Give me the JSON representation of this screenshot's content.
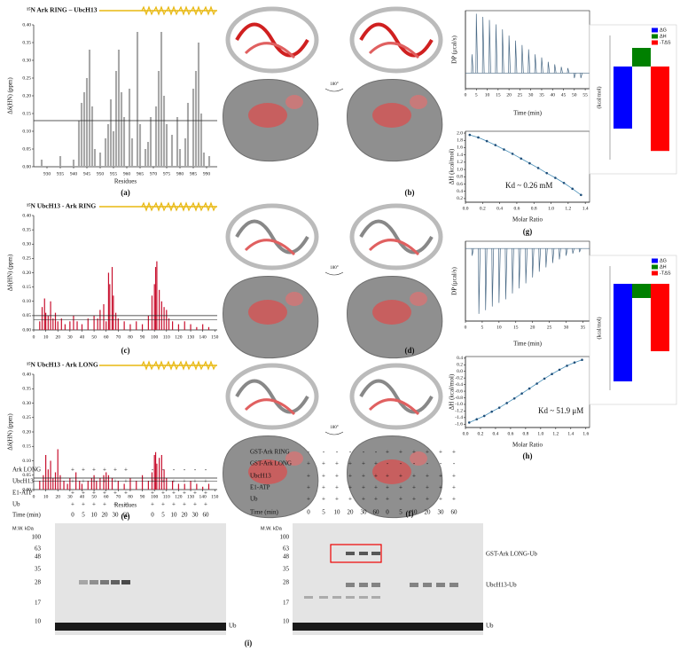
{
  "chart_data": [
    {
      "type": "bar",
      "title": "¹⁵N Ark RING – UbcH13",
      "panel": "(a)",
      "xlabel": "Residues",
      "ylabel": "Δδ(HN) (ppm)",
      "color": "#a8a8a8",
      "x": [
        928,
        935,
        940,
        942,
        943,
        944,
        945,
        946,
        947,
        948,
        950,
        952,
        953,
        954,
        955,
        956,
        957,
        958,
        959,
        961,
        962,
        964,
        965,
        967,
        968,
        969,
        971,
        972,
        973,
        974,
        975,
        977,
        979,
        980,
        982,
        983,
        985,
        986,
        987,
        988,
        989,
        991
      ],
      "values": [
        0.02,
        0.03,
        0.02,
        0.13,
        0.18,
        0.21,
        0.25,
        0.33,
        0.17,
        0.05,
        0.04,
        0.08,
        0.12,
        0.19,
        0.1,
        0.27,
        0.33,
        0.21,
        0.14,
        0.22,
        0.08,
        0.38,
        0.12,
        0.05,
        0.07,
        0.14,
        0.17,
        0.27,
        0.38,
        0.2,
        0.12,
        0.09,
        0.14,
        0.05,
        0.08,
        0.18,
        0.22,
        0.27,
        0.35,
        0.15,
        0.04,
        0.03
      ],
      "xlim": [
        925,
        994
      ],
      "xticks": [
        930,
        935,
        940,
        945,
        950,
        955,
        960,
        965,
        970,
        975,
        980,
        985,
        990
      ],
      "ylim": [
        0,
        0.4
      ],
      "yticks": [
        {
          "value": 0,
          "label": "0.00"
        },
        0.05,
        {
          "value": 0.1,
          "label": "0.10"
        },
        0.15,
        {
          "value": 0.2,
          "label": "0.20"
        },
        0.25,
        {
          "value": 0.3,
          "label": "0.30"
        },
        0.35,
        {
          "value": 0.4,
          "label": "0.40"
        }
      ],
      "thresholds": [
        0.13
      ]
    },
    {
      "type": "bar",
      "title": "¹⁵N UbcH13 - Ark RING",
      "panel": "(c)",
      "ylabel": "Δδ(HN) (ppm)",
      "color": "#c8102e",
      "x": [
        5,
        7,
        9,
        10,
        12,
        14,
        16,
        18,
        20,
        23,
        26,
        30,
        33,
        36,
        40,
        45,
        50,
        53,
        55,
        58,
        60,
        62,
        63,
        65,
        66,
        68,
        70,
        75,
        80,
        85,
        90,
        95,
        98,
        100,
        101,
        102,
        104,
        106,
        108,
        110,
        112,
        115,
        120,
        125,
        130,
        135,
        140,
        145
      ],
      "values": [
        0.03,
        0.08,
        0.11,
        0.06,
        0.05,
        0.1,
        0.04,
        0.06,
        0.03,
        0.04,
        0.02,
        0.03,
        0.05,
        0.03,
        0.02,
        0.04,
        0.05,
        0.04,
        0.07,
        0.09,
        0.03,
        0.2,
        0.16,
        0.22,
        0.12,
        0.06,
        0.04,
        0.03,
        0.02,
        0.03,
        0.02,
        0.05,
        0.12,
        0.16,
        0.22,
        0.24,
        0.14,
        0.1,
        0.08,
        0.07,
        0.04,
        0.03,
        0.02,
        0.03,
        0.02,
        0.01,
        0.02,
        0.01
      ],
      "xlim": [
        0,
        152
      ],
      "xticks": [
        0,
        10,
        20,
        30,
        40,
        50,
        60,
        70,
        80,
        90,
        100,
        110,
        120,
        130,
        140,
        150
      ],
      "ylim": [
        0,
        0.4
      ],
      "yticks": [
        {
          "value": 0,
          "label": "0.00"
        },
        0.05,
        {
          "value": 0.1,
          "label": "0.10"
        },
        0.15,
        {
          "value": 0.2,
          "label": "0.20"
        },
        0.25,
        {
          "value": 0.3,
          "label": "0.30"
        },
        0.35,
        {
          "value": 0.4,
          "label": "0.40"
        }
      ],
      "thresholds": [
        0.05,
        0.035
      ]
    },
    {
      "type": "bar",
      "title": "¹⁵N UbcH13 - Ark LONG",
      "panel": "(e)",
      "xlabel": "Residues",
      "ylabel": "Δδ(HN) (ppm)",
      "color": "#c8102e",
      "x": [
        5,
        8,
        10,
        12,
        14,
        16,
        18,
        20,
        22,
        25,
        28,
        30,
        35,
        38,
        40,
        45,
        48,
        50,
        52,
        55,
        58,
        60,
        62,
        65,
        70,
        75,
        80,
        85,
        90,
        95,
        98,
        100,
        101,
        102,
        104,
        106,
        108,
        110,
        115,
        120,
        125,
        130,
        135,
        140,
        145
      ],
      "values": [
        0.03,
        0.05,
        0.12,
        0.07,
        0.1,
        0.04,
        0.06,
        0.14,
        0.05,
        0.03,
        0.02,
        0.04,
        0.06,
        0.03,
        0.02,
        0.03,
        0.04,
        0.05,
        0.03,
        0.04,
        0.05,
        0.06,
        0.05,
        0.04,
        0.03,
        0.02,
        0.04,
        0.03,
        0.05,
        0.03,
        0.06,
        0.12,
        0.13,
        0.09,
        0.11,
        0.12,
        0.07,
        0.04,
        0.03,
        0.02,
        0.02,
        0.03,
        0.02,
        0.01,
        0.02
      ],
      "xlim": [
        0,
        152
      ],
      "xticks": [
        0,
        10,
        20,
        30,
        40,
        50,
        60,
        70,
        80,
        90,
        100,
        110,
        120,
        130,
        140,
        150
      ],
      "ylim": [
        0,
        0.4
      ],
      "yticks": [
        {
          "value": 0,
          "label": "0.00"
        },
        0.05,
        {
          "value": 0.1,
          "label": "0.10"
        },
        0.15,
        {
          "value": 0.2,
          "label": "0.20"
        },
        0.25,
        {
          "value": 0.3,
          "label": "0.30"
        },
        0.35,
        {
          "value": 0.4,
          "label": "0.40"
        }
      ],
      "thresholds": [
        0.04,
        0.03
      ]
    },
    {
      "type": "thermogram",
      "xlabel": "Time (min)",
      "ylabel": "DP (μcal/s)",
      "color": "#4a6a86",
      "x": [
        3,
        5,
        8,
        11,
        14,
        17,
        20,
        23,
        26,
        29,
        32,
        35,
        38,
        41,
        44,
        47,
        50,
        53
      ],
      "values": [
        0.3,
        0.95,
        0.9,
        0.85,
        0.78,
        0.7,
        0.6,
        0.52,
        0.45,
        0.38,
        0.3,
        0.25,
        0.18,
        0.14,
        0.1,
        0.08,
        -0.08,
        -0.08
      ],
      "xlim": [
        0,
        57
      ],
      "xticks": [
        0,
        5,
        10,
        15,
        20,
        25,
        30,
        35,
        40,
        45,
        50,
        55
      ],
      "ylim": [
        -0.25,
        1
      ]
    },
    {
      "type": "enthalpy",
      "xlabel": "Molar Ratio",
      "ylabel": "ΔH (kcal/mol)",
      "panel": "(g)",
      "annotation": "Kd ~ 0.26 mM",
      "color": "#4a90b8",
      "x": [
        0.05,
        0.15,
        0.25,
        0.35,
        0.45,
        0.55,
        0.65,
        0.75,
        0.85,
        0.95,
        1.05,
        1.15,
        1.25,
        1.35
      ],
      "values": [
        1.95,
        1.88,
        1.78,
        1.67,
        1.55,
        1.43,
        1.3,
        1.17,
        1.04,
        0.9,
        0.77,
        0.63,
        0.47,
        0.3
      ],
      "xlim": [
        0,
        1.45
      ],
      "xticks": [
        {
          "value": 0,
          "label": "0.0"
        },
        0.2,
        0.4,
        0.6,
        0.8,
        {
          "value": 1,
          "label": "1.0"
        },
        1.2,
        1.4
      ],
      "ylim": [
        0.1,
        2.05
      ],
      "yticks": [
        0.2,
        0.4,
        0.6,
        0.8,
        {
          "value": 1,
          "label": "1.0"
        },
        1.2,
        1.4,
        1.6,
        1.8,
        {
          "value": 2,
          "label": "2.0"
        }
      ]
    },
    {
      "type": "energy",
      "ylabel": "(kcal/mol)",
      "categories": [
        "ΔG",
        "ΔH",
        "-TΔS"
      ],
      "colors": [
        "#0000ff",
        "#008000",
        "#ff0000"
      ],
      "values": [
        -5,
        1.5,
        -6.8
      ],
      "ylim": [
        -7.5,
        2.5
      ]
    },
    {
      "type": "thermogram",
      "xlabel": "Time (min)",
      "ylabel": "DP (μcal/s)",
      "color": "#4a6a86",
      "x": [
        2,
        4,
        6,
        8,
        10,
        12,
        14,
        16,
        18,
        20,
        22,
        24,
        26,
        28,
        30,
        32,
        34
      ],
      "values": [
        -0.1,
        -0.9,
        -0.85,
        -0.8,
        -0.75,
        -0.7,
        -0.62,
        -0.55,
        -0.48,
        -0.4,
        -0.32,
        -0.26,
        -0.2,
        -0.15,
        -0.1,
        -0.07,
        -0.05
      ],
      "xlim": [
        0,
        37
      ],
      "xticks": [
        0,
        5,
        10,
        15,
        20,
        25,
        30,
        35
      ],
      "ylim": [
        -1,
        0.1
      ]
    },
    {
      "type": "enthalpy",
      "xlabel": "Molar Ratio",
      "ylabel": "ΔH (kcal/mol)",
      "panel": "(h)",
      "annotation": "Kd ~ 51.9 μM",
      "color": "#4a90b8",
      "x": [
        0.05,
        0.15,
        0.25,
        0.35,
        0.45,
        0.55,
        0.65,
        0.75,
        0.85,
        0.95,
        1.05,
        1.15,
        1.25,
        1.35,
        1.45,
        1.55
      ],
      "values": [
        -1.55,
        -1.45,
        -1.35,
        -1.22,
        -1.1,
        -0.96,
        -0.82,
        -0.67,
        -0.52,
        -0.37,
        -0.22,
        -0.08,
        0.05,
        0.17,
        0.27,
        0.35
      ],
      "xlim": [
        0,
        1.65
      ],
      "xticks": [
        {
          "value": 0,
          "label": "0.0"
        },
        0.2,
        0.4,
        0.6,
        0.8,
        {
          "value": 1,
          "label": "1.0"
        },
        1.2,
        1.4,
        1.6
      ],
      "ylim": [
        -1.7,
        0.45
      ],
      "yticks": [
        -1.6,
        -1.4,
        -1.2,
        {
          "value": -1,
          "label": "-1.0"
        },
        -0.8,
        -0.6,
        -0.4,
        -0.2,
        {
          "value": 0,
          "label": "0.0"
        },
        0.2,
        0.4
      ]
    },
    {
      "type": "energy",
      "ylabel": "(kcal/mol)",
      "categories": [
        "ΔG",
        "ΔH",
        "-TΔS"
      ],
      "colors": [
        "#0000ff",
        "#008000",
        "#ff0000"
      ],
      "values": [
        -5.5,
        -0.8,
        -3.8
      ],
      "ylim": [
        -6,
        1
      ]
    }
  ],
  "structures": [
    {
      "panel": "(b)",
      "rotation": "180°"
    },
    {
      "panel": "(d)",
      "rotation": "180°"
    },
    {
      "panel": "(f)",
      "rotation": "180°"
    }
  ],
  "gels": [
    {
      "rows": [
        {
          "label": "Ark LONG",
          "cells": [
            "+",
            "+",
            "+",
            "+",
            "+",
            "+",
            "-",
            "-",
            "-",
            "-",
            "-",
            "-"
          ]
        },
        {
          "label": "UbcH13",
          "cells": [
            "+",
            "+",
            "+",
            "+",
            "+",
            "+",
            "+",
            "+",
            "+",
            "+",
            "+",
            "+"
          ]
        },
        {
          "label": "E1-ATP",
          "cells": [
            "+",
            "+",
            "+",
            "+",
            "+",
            "+",
            "+",
            "+",
            "+",
            "+",
            "+",
            "+"
          ]
        },
        {
          "label": "Ub",
          "cells": [
            "+",
            "+",
            "+",
            "+",
            "+",
            "+",
            "+",
            "+",
            "+",
            "+",
            "+",
            "+"
          ]
        }
      ],
      "time_label": "Time (min)",
      "times": [
        0,
        5,
        10,
        20,
        30,
        60,
        0,
        5,
        10,
        20,
        30,
        60
      ],
      "mw_label": "M.W. kDa",
      "markers": [
        100,
        63,
        48,
        35,
        28,
        17,
        10
      ],
      "band_labels": [
        "Ub"
      ]
    },
    {
      "rows": [
        {
          "label": "GST-Ark RING",
          "cells": [
            "-",
            "-",
            "-",
            "-",
            "-",
            "-",
            "+",
            "+",
            "+",
            "+",
            "+",
            "+"
          ]
        },
        {
          "label": "GST-Ark LONG",
          "cells": [
            "+",
            "+",
            "+",
            "+",
            "+",
            "+",
            "-",
            "-",
            "-",
            "-",
            "-",
            "-"
          ]
        },
        {
          "label": "UbcH13",
          "cells": [
            "+",
            "+",
            "+",
            "+",
            "+",
            "+",
            "+",
            "+",
            "+",
            "+",
            "+",
            "+"
          ]
        },
        {
          "label": "E1-ATP",
          "cells": [
            "+",
            "+",
            "+",
            "+",
            "+",
            "+",
            "+",
            "+",
            "+",
            "+",
            "+",
            "+"
          ]
        },
        {
          "label": "Ub",
          "cells": [
            "+",
            "+",
            "+",
            "+",
            "+",
            "+",
            "+",
            "+",
            "+",
            "+",
            "+",
            "+"
          ]
        }
      ],
      "time_label": "Time (min)",
      "times": [
        0,
        5,
        10,
        20,
        30,
        60,
        0,
        5,
        10,
        20,
        30,
        60
      ],
      "mw_label": "M.W. kDa",
      "markers": [
        100,
        63,
        48,
        35,
        28,
        17,
        10
      ],
      "band_labels": [
        "GST-Ark LONG-Ub",
        "UbcH13-Ub",
        "Ub"
      ]
    }
  ],
  "panel_i": "(i)"
}
